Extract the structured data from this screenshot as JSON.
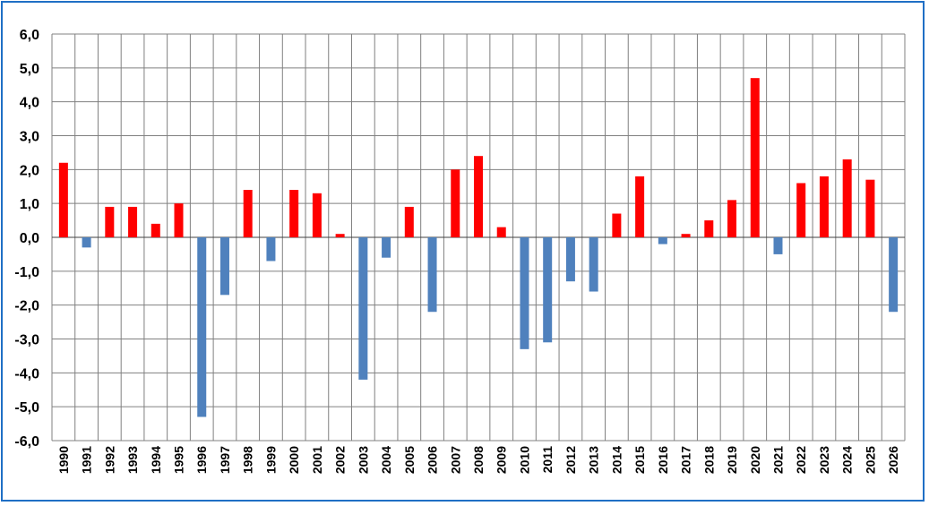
{
  "chart_data": {
    "type": "bar",
    "categories": [
      "1990",
      "1991",
      "1992",
      "1993",
      "1994",
      "1995",
      "1996",
      "1997",
      "1998",
      "1999",
      "2000",
      "2001",
      "2002",
      "2003",
      "2004",
      "2005",
      "2006",
      "2007",
      "2008",
      "2009",
      "2010",
      "2011",
      "2012",
      "2013",
      "2014",
      "2015",
      "2016",
      "2017",
      "2018",
      "2019",
      "2020",
      "2021",
      "2022",
      "2023",
      "2024",
      "2025",
      "2026"
    ],
    "values": [
      2.2,
      -0.3,
      0.9,
      0.9,
      0.4,
      1.0,
      -5.3,
      -1.7,
      1.4,
      -0.7,
      1.4,
      1.3,
      0.1,
      -4.2,
      -0.6,
      0.9,
      -2.2,
      2.0,
      2.4,
      0.3,
      -3.3,
      -3.1,
      -1.3,
      -1.6,
      0.7,
      1.8,
      -0.2,
      0.1,
      0.5,
      1.1,
      4.7,
      -0.5,
      1.6,
      1.8,
      2.3,
      1.7,
      -2.2
    ],
    "ylim": [
      -6,
      6
    ],
    "yticks": [
      "6,0",
      "5,0",
      "4,0",
      "3,0",
      "2,0",
      "1,0",
      "0,0",
      "-1,0",
      "-2,0",
      "-3,0",
      "-4,0",
      "-5,0",
      "-6,0"
    ],
    "ytick_values": [
      6,
      5,
      4,
      3,
      2,
      1,
      0,
      -1,
      -2,
      -3,
      -4,
      -5,
      -6
    ],
    "title": "",
    "xlabel": "",
    "ylabel": "",
    "grid": true,
    "legend": "none",
    "colors": {
      "positive": "#ff0000",
      "negative": "#4f81bd",
      "frame": "#1f6fc5",
      "grid": "#808080"
    }
  }
}
